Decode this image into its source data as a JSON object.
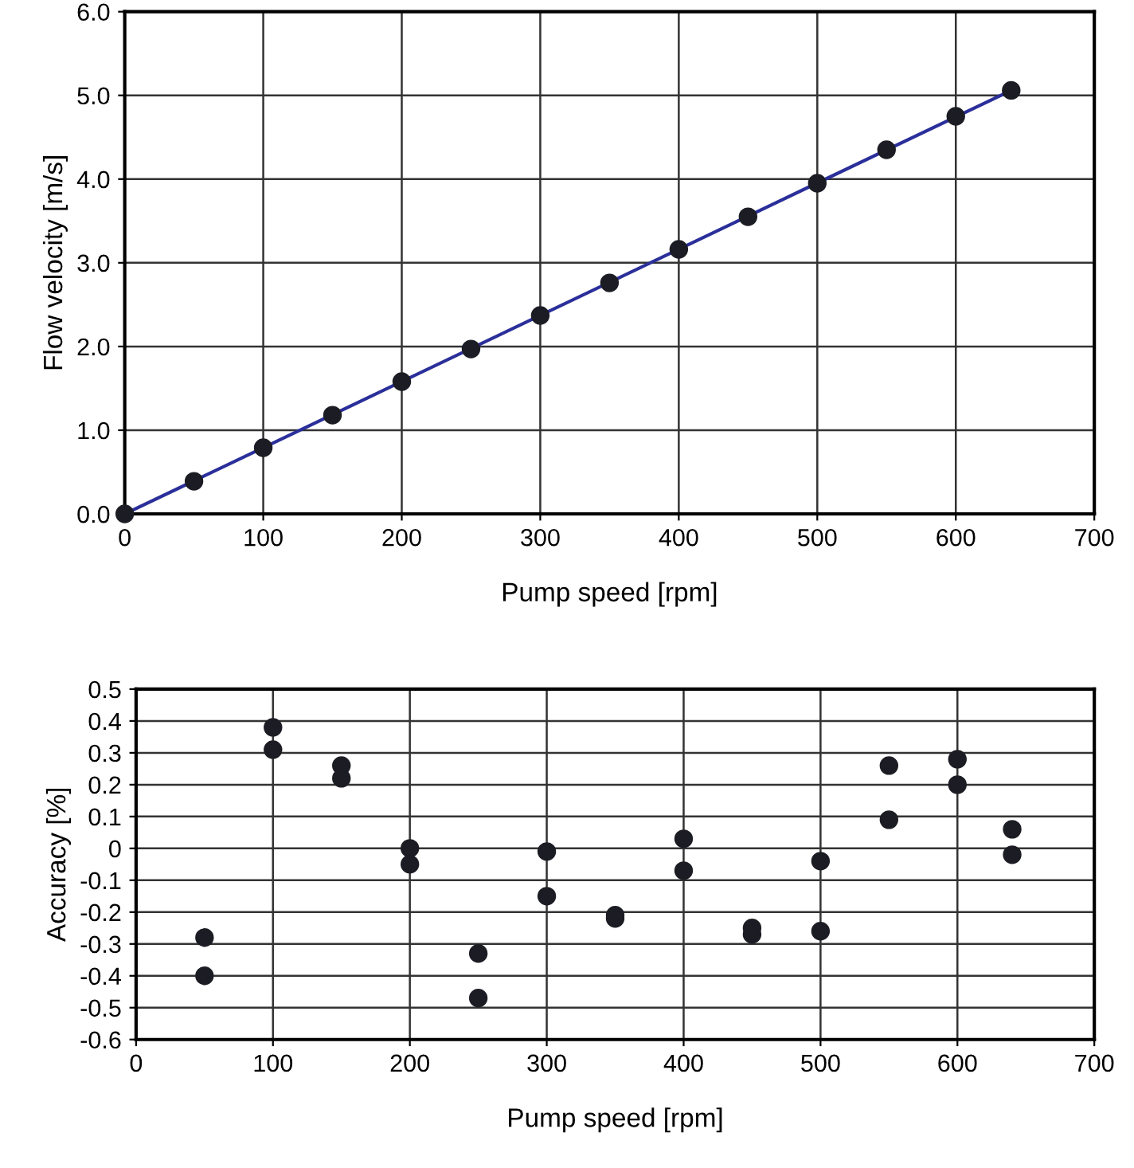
{
  "chart_data": [
    {
      "type": "scatter",
      "xlabel": "Pump speed [rpm]",
      "ylabel": "Flow velocity [m/s]",
      "xlim": [
        0,
        700
      ],
      "ylim": [
        0,
        6
      ],
      "xticks": [
        0,
        100,
        200,
        300,
        400,
        500,
        600,
        700
      ],
      "yticks": [
        {
          "value": 0,
          "label": "0.0"
        },
        {
          "value": 1,
          "label": "1.0"
        },
        {
          "value": 2,
          "label": "2.0"
        },
        {
          "value": 3,
          "label": "3.0"
        },
        {
          "value": 4,
          "label": "4.0"
        },
        {
          "value": 5,
          "label": "5.0"
        },
        {
          "value": 6,
          "label": "6.0"
        }
      ],
      "grid": true,
      "legend": false,
      "series": [
        {
          "type": "line",
          "color": "#2b2f9a",
          "marker": "none",
          "line_style": "solid",
          "x": [
            0,
            640
          ],
          "values": [
            0,
            5.06
          ]
        },
        {
          "color": "#1c1c24",
          "marker": "circle",
          "x": [
            0,
            50,
            100,
            150,
            200,
            250,
            300,
            350,
            400,
            450,
            500,
            550,
            600,
            640
          ],
          "values": [
            0,
            0.39,
            0.79,
            1.18,
            1.58,
            1.97,
            2.37,
            2.76,
            3.16,
            3.55,
            3.95,
            4.35,
            4.75,
            5.06
          ]
        }
      ]
    },
    {
      "type": "scatter",
      "xlabel": "Pump speed [rpm]",
      "ylabel": "Accuracy [%]",
      "xlim": [
        0,
        700
      ],
      "ylim": [
        -0.6,
        0.5
      ],
      "xticks": [
        0,
        100,
        200,
        300,
        400,
        500,
        600,
        700
      ],
      "yticks": [
        -0.6,
        -0.5,
        -0.4,
        -0.3,
        -0.2,
        -0.1,
        0,
        0.1,
        0.2,
        0.3,
        0.4,
        0.5
      ],
      "grid": true,
      "legend": false,
      "series": [
        {
          "color": "#1c1c24",
          "marker": "circle",
          "x": [
            50,
            50,
            100,
            100,
            150,
            150,
            200,
            200,
            250,
            250,
            300,
            300,
            350,
            350,
            400,
            400,
            450,
            450,
            500,
            500,
            550,
            550,
            600,
            600,
            640,
            640
          ],
          "values": [
            -0.28,
            -0.4,
            0.38,
            0.31,
            0.26,
            0.22,
            0.0,
            -0.05,
            -0.33,
            -0.47,
            -0.01,
            -0.15,
            -0.21,
            -0.22,
            0.03,
            -0.07,
            -0.25,
            -0.27,
            -0.04,
            -0.26,
            0.26,
            0.09,
            0.28,
            0.2,
            0.06,
            -0.02
          ]
        }
      ]
    }
  ]
}
